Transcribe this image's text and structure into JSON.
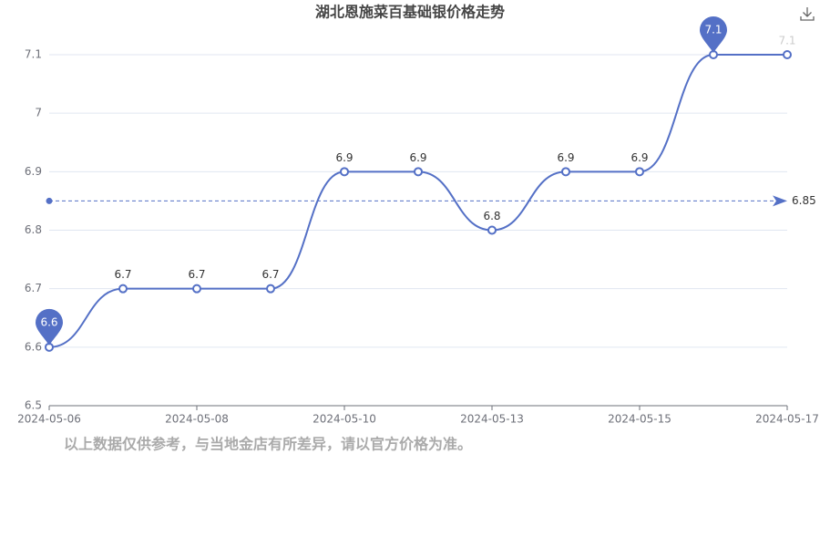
{
  "chart_data": {
    "type": "line",
    "title": "湖北恩施菜百基础银价格走势",
    "categories": [
      "2024-05-06",
      null,
      "2024-05-08",
      null,
      "2024-05-10",
      null,
      "2024-05-13",
      null,
      "2024-05-15",
      null,
      "2024-05-17"
    ],
    "values": [
      6.6,
      6.7,
      6.7,
      6.7,
      6.9,
      6.9,
      6.8,
      6.9,
      6.9,
      7.1,
      7.1
    ],
    "color": "#5470c6",
    "ylim": [
      6.5,
      7.1
    ],
    "yticks": [
      6.5,
      6.6,
      6.7,
      6.8,
      6.9,
      7,
      7.1
    ],
    "grid": true,
    "average": 6.85,
    "note": "以上数据仅供参考，与当地金店有所差异，请以官方价格为准。"
  }
}
